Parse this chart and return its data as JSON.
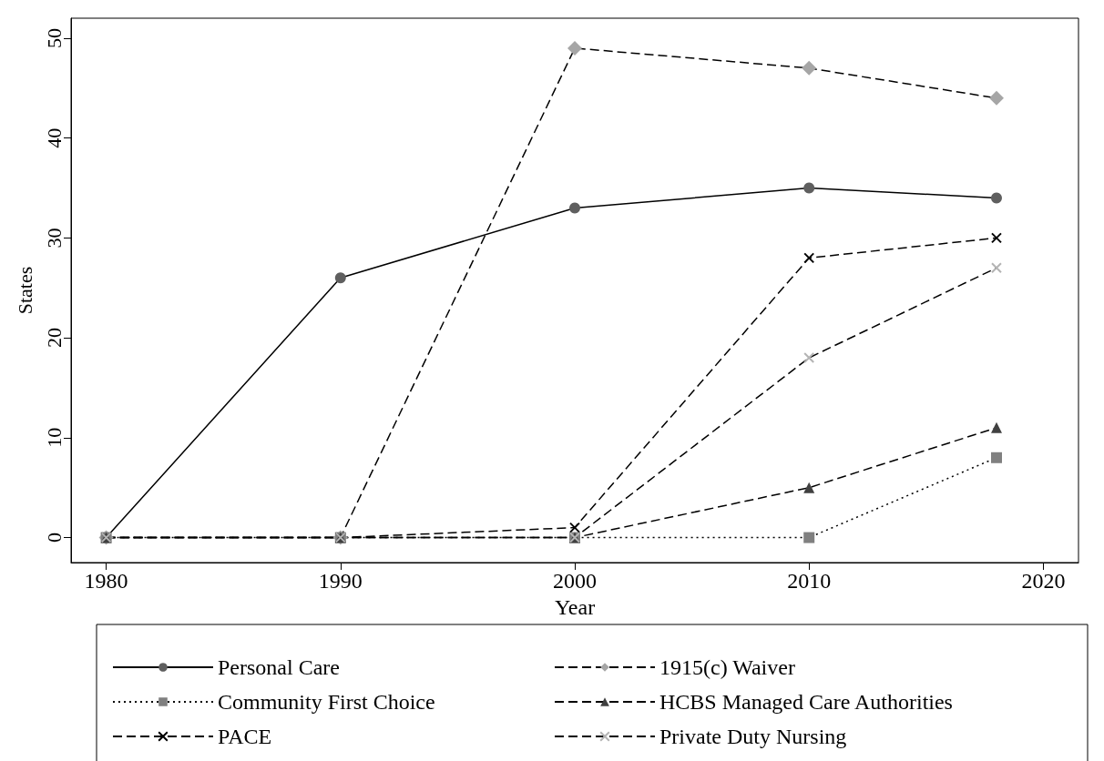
{
  "chart_data": {
    "type": "line",
    "xlabel": "Year",
    "ylabel": "States",
    "x": [
      1980,
      1990,
      2000,
      2010,
      2018
    ],
    "series": [
      {
        "name": "Personal Care",
        "color": "#5f5f5f",
        "values": [
          0,
          26,
          33,
          35,
          34
        ],
        "marker": "circle",
        "line_style": "solid"
      },
      {
        "name": "1915(c) Waiver",
        "color": "#a6a6a6",
        "values": [
          0,
          0,
          49,
          47,
          44
        ],
        "marker": "diamond",
        "line_style": "dashed"
      },
      {
        "name": "Community First Choice",
        "color": "#808080",
        "values": [
          0,
          0,
          0,
          0,
          8
        ],
        "marker": "square",
        "line_style": "dotted"
      },
      {
        "name": "HCBS Managed Care Authorities",
        "color": "#404040",
        "values": [
          0,
          0,
          0,
          5,
          11
        ],
        "marker": "triangle",
        "line_style": "dashed"
      },
      {
        "name": "PACE",
        "color": "#000000",
        "values": [
          0,
          0,
          1,
          28,
          30
        ],
        "marker": "cross",
        "line_style": "dashed"
      },
      {
        "name": "Private Duty Nursing",
        "color": "#b4b4b4",
        "values": [
          0,
          0,
          0,
          18,
          27
        ],
        "marker": "cross",
        "line_style": "dashed"
      }
    ],
    "xlim": [
      1978.5,
      2021.5
    ],
    "xticks": [
      1980,
      1990,
      2000,
      2010,
      2020
    ],
    "ylim": [
      -2.5,
      52
    ],
    "yticks": [
      0,
      10,
      20,
      30,
      40,
      50
    ],
    "grid": false,
    "legend": "bottom"
  }
}
